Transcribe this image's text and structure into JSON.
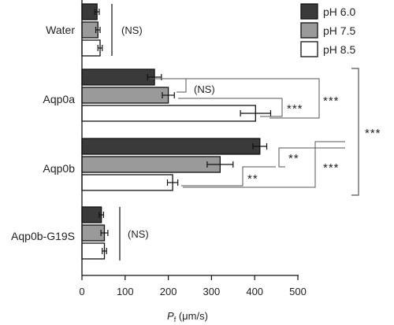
{
  "chart_data": {
    "type": "bar",
    "orientation": "horizontal",
    "categories": [
      "Water",
      "Aqp0a",
      "Aqp0b",
      "Aqp0b-G19S"
    ],
    "series": [
      {
        "name": "pH 6.0",
        "color": "#3a3a3a",
        "values": [
          35,
          168,
          412,
          45
        ],
        "errors": [
          5,
          16,
          16,
          5
        ]
      },
      {
        "name": "pH 7.5",
        "color": "#9a9a9a",
        "values": [
          37,
          200,
          320,
          52
        ],
        "errors": [
          5,
          14,
          30,
          8
        ]
      },
      {
        "name": "pH 8.5",
        "color": "#ffffff",
        "values": [
          42,
          402,
          210,
          52
        ],
        "errors": [
          5,
          35,
          12,
          5
        ]
      }
    ],
    "xaxis": {
      "min": 0,
      "max": 500,
      "ticks": [
        "0",
        "100",
        "200",
        "300",
        "400",
        "500"
      ],
      "label_main": "P",
      "label_sub": "f",
      "label_units": " (μm/s)"
    },
    "legend_placement": "top-right",
    "grid": false,
    "annotations": {
      "water_ns": "(NS)",
      "aqp0a_ns": "(NS)",
      "aqp0a_inner": "***",
      "aqp0a_outer": "***",
      "aqp0b_upper": "**",
      "aqp0b_lower": "**",
      "aqp0b_outer": "***",
      "between_groups": "***",
      "g19s_ns": "(NS)"
    }
  }
}
